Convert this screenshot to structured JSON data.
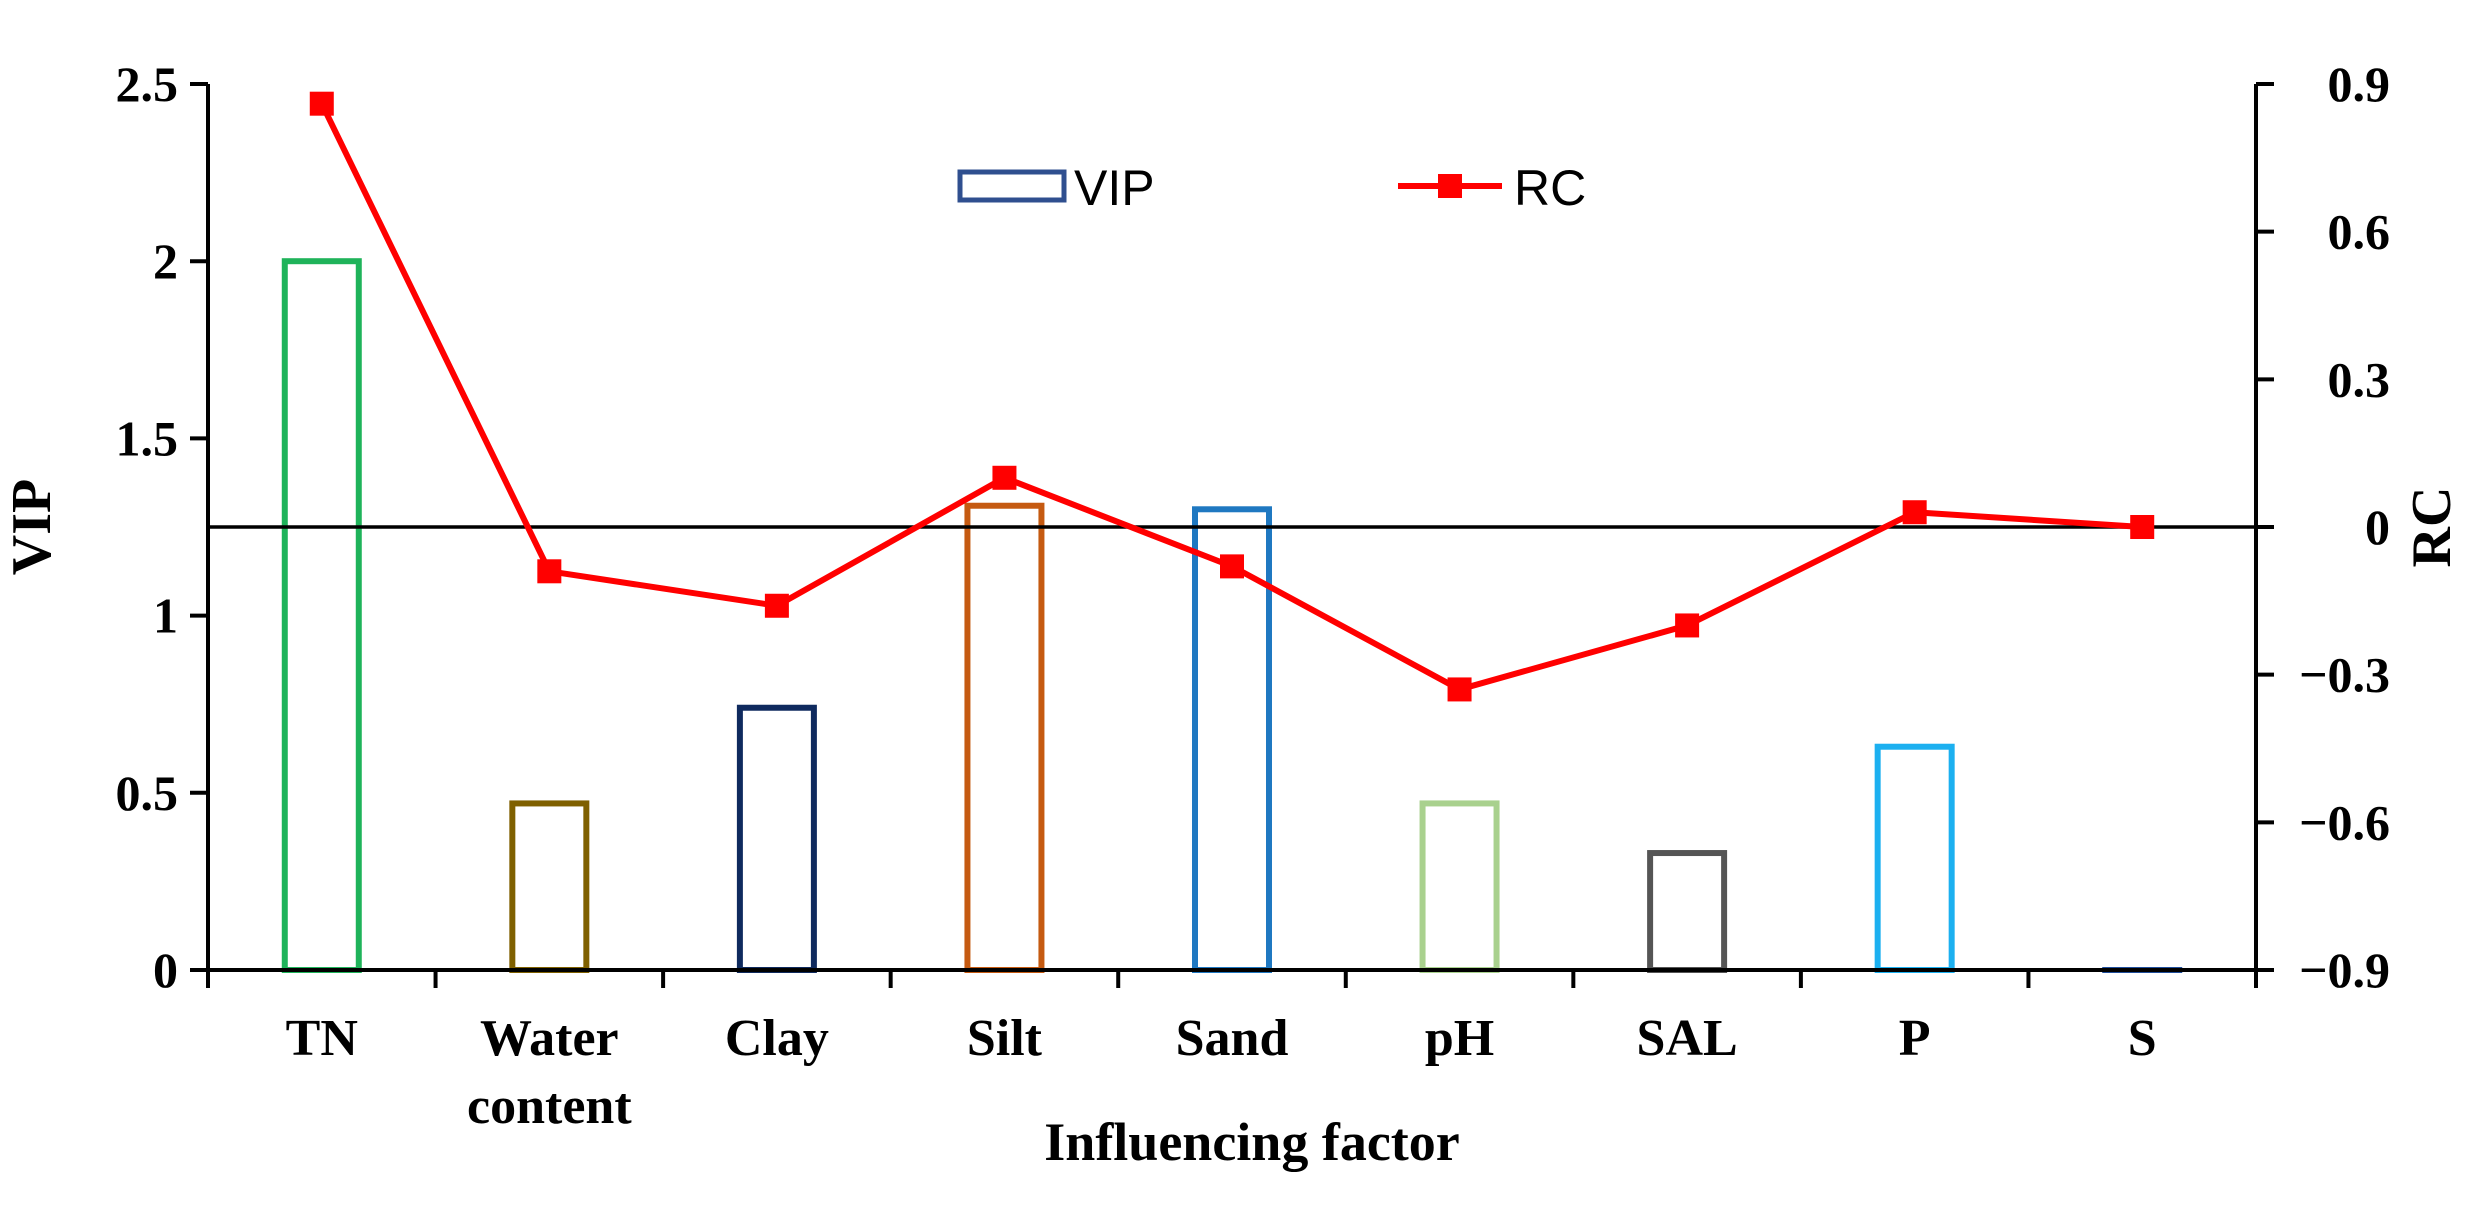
{
  "chart_data": {
    "type": "bar",
    "categories": [
      [
        "TN"
      ],
      [
        "Water",
        "content"
      ],
      [
        "Clay"
      ],
      [
        "Silt"
      ],
      [
        "Sand"
      ],
      [
        "pH"
      ],
      [
        "SAL"
      ],
      [
        "P"
      ],
      [
        "S"
      ]
    ],
    "xlabel": "Influencing factor",
    "ylabel": "VIP",
    "y2label": "RC",
    "ylim": [
      0,
      2.5
    ],
    "y2lim": [
      -0.9,
      0.9
    ],
    "yticks": [
      "0",
      "0.5",
      "1",
      "1.5",
      "2",
      "2.5"
    ],
    "y2ticks": [
      "−0.9",
      "−0.6",
      "−0.3",
      "0",
      "0.3",
      "0.6",
      "0.9"
    ],
    "series": [
      {
        "name": "VIP",
        "type": "bar",
        "axis": "left",
        "values": [
          2.0,
          0.47,
          0.74,
          1.31,
          1.3,
          0.47,
          0.33,
          0.63,
          0.0
        ],
        "colors": [
          "#1fb35a",
          "#7f6000",
          "#0f2a5e",
          "#c55a11",
          "#1f78c1",
          "#a9d18e",
          "#555555",
          "#1cb0f0",
          "#1f4e9c"
        ]
      },
      {
        "name": "RC",
        "type": "line",
        "axis": "right",
        "color": "#ff0000",
        "values": [
          0.86,
          -0.09,
          -0.16,
          0.1,
          -0.08,
          -0.33,
          -0.2,
          0.03,
          0.0
        ]
      }
    ],
    "legend": {
      "position": "top-center",
      "bar_swatch_color": "#2f4f8f",
      "line_color": "#ff0000"
    },
    "zero_line_axis": "right",
    "grid": false
  }
}
